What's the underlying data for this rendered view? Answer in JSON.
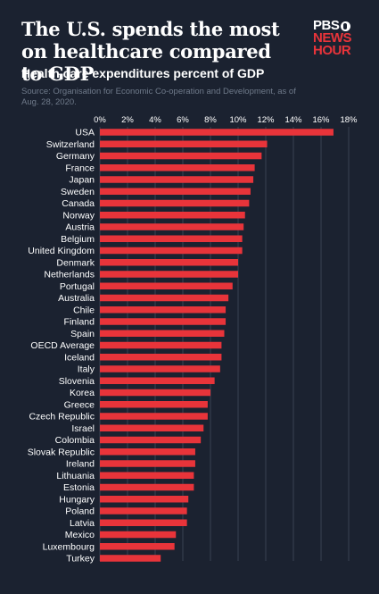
{
  "header": {
    "title": "The U.S. spends the most on healthcare compared to GDP",
    "subtitle": "Health care expenditures percent of GDP",
    "source": "Source: Organisation for Economic Co-operation and Development, as of Aug. 28, 2020."
  },
  "logo": {
    "line1": "PBS",
    "line2": "NEWS",
    "line3": "HOUR"
  },
  "colors": {
    "background": "#1b2230",
    "bar": "#e8343a",
    "grid": "#3a4252"
  },
  "chart_data": {
    "type": "bar",
    "orientation": "horizontal",
    "categories": [
      "USA",
      "Switzerland",
      "Germany",
      "France",
      "Japan",
      "Sweden",
      "Canada",
      "Norway",
      "Austria",
      "Belgium",
      "United Kingdom",
      "Denmark",
      "Netherlands",
      "Portugal",
      "Australia",
      "Chile",
      "Finland",
      "Spain",
      "OECD Average",
      "Iceland",
      "Italy",
      "Slovenia",
      "Korea",
      "Greece",
      "Czech Republic",
      "Israel",
      "Colombia",
      "Slovak Republic",
      "Ireland",
      "Lithuania",
      "Estonia",
      "Hungary",
      "Poland",
      "Latvia",
      "Mexico",
      "Luxembourg",
      "Turkey"
    ],
    "values": [
      16.9,
      12.1,
      11.7,
      11.2,
      11.1,
      10.9,
      10.8,
      10.5,
      10.4,
      10.3,
      10.3,
      10.0,
      10.0,
      9.6,
      9.3,
      9.1,
      9.1,
      9.0,
      8.8,
      8.8,
      8.7,
      8.3,
      8.0,
      7.8,
      7.8,
      7.5,
      7.3,
      6.9,
      6.9,
      6.8,
      6.8,
      6.4,
      6.3,
      6.3,
      5.5,
      5.4,
      4.4
    ],
    "xticks": [
      "0%",
      "2%",
      "4%",
      "6%",
      "8%",
      "10%",
      "12%",
      "14%",
      "16%",
      "18%"
    ],
    "xlim": [
      0,
      18
    ],
    "grid": true,
    "title": "Health care expenditures percent of GDP",
    "xlabel": "",
    "ylabel": ""
  }
}
